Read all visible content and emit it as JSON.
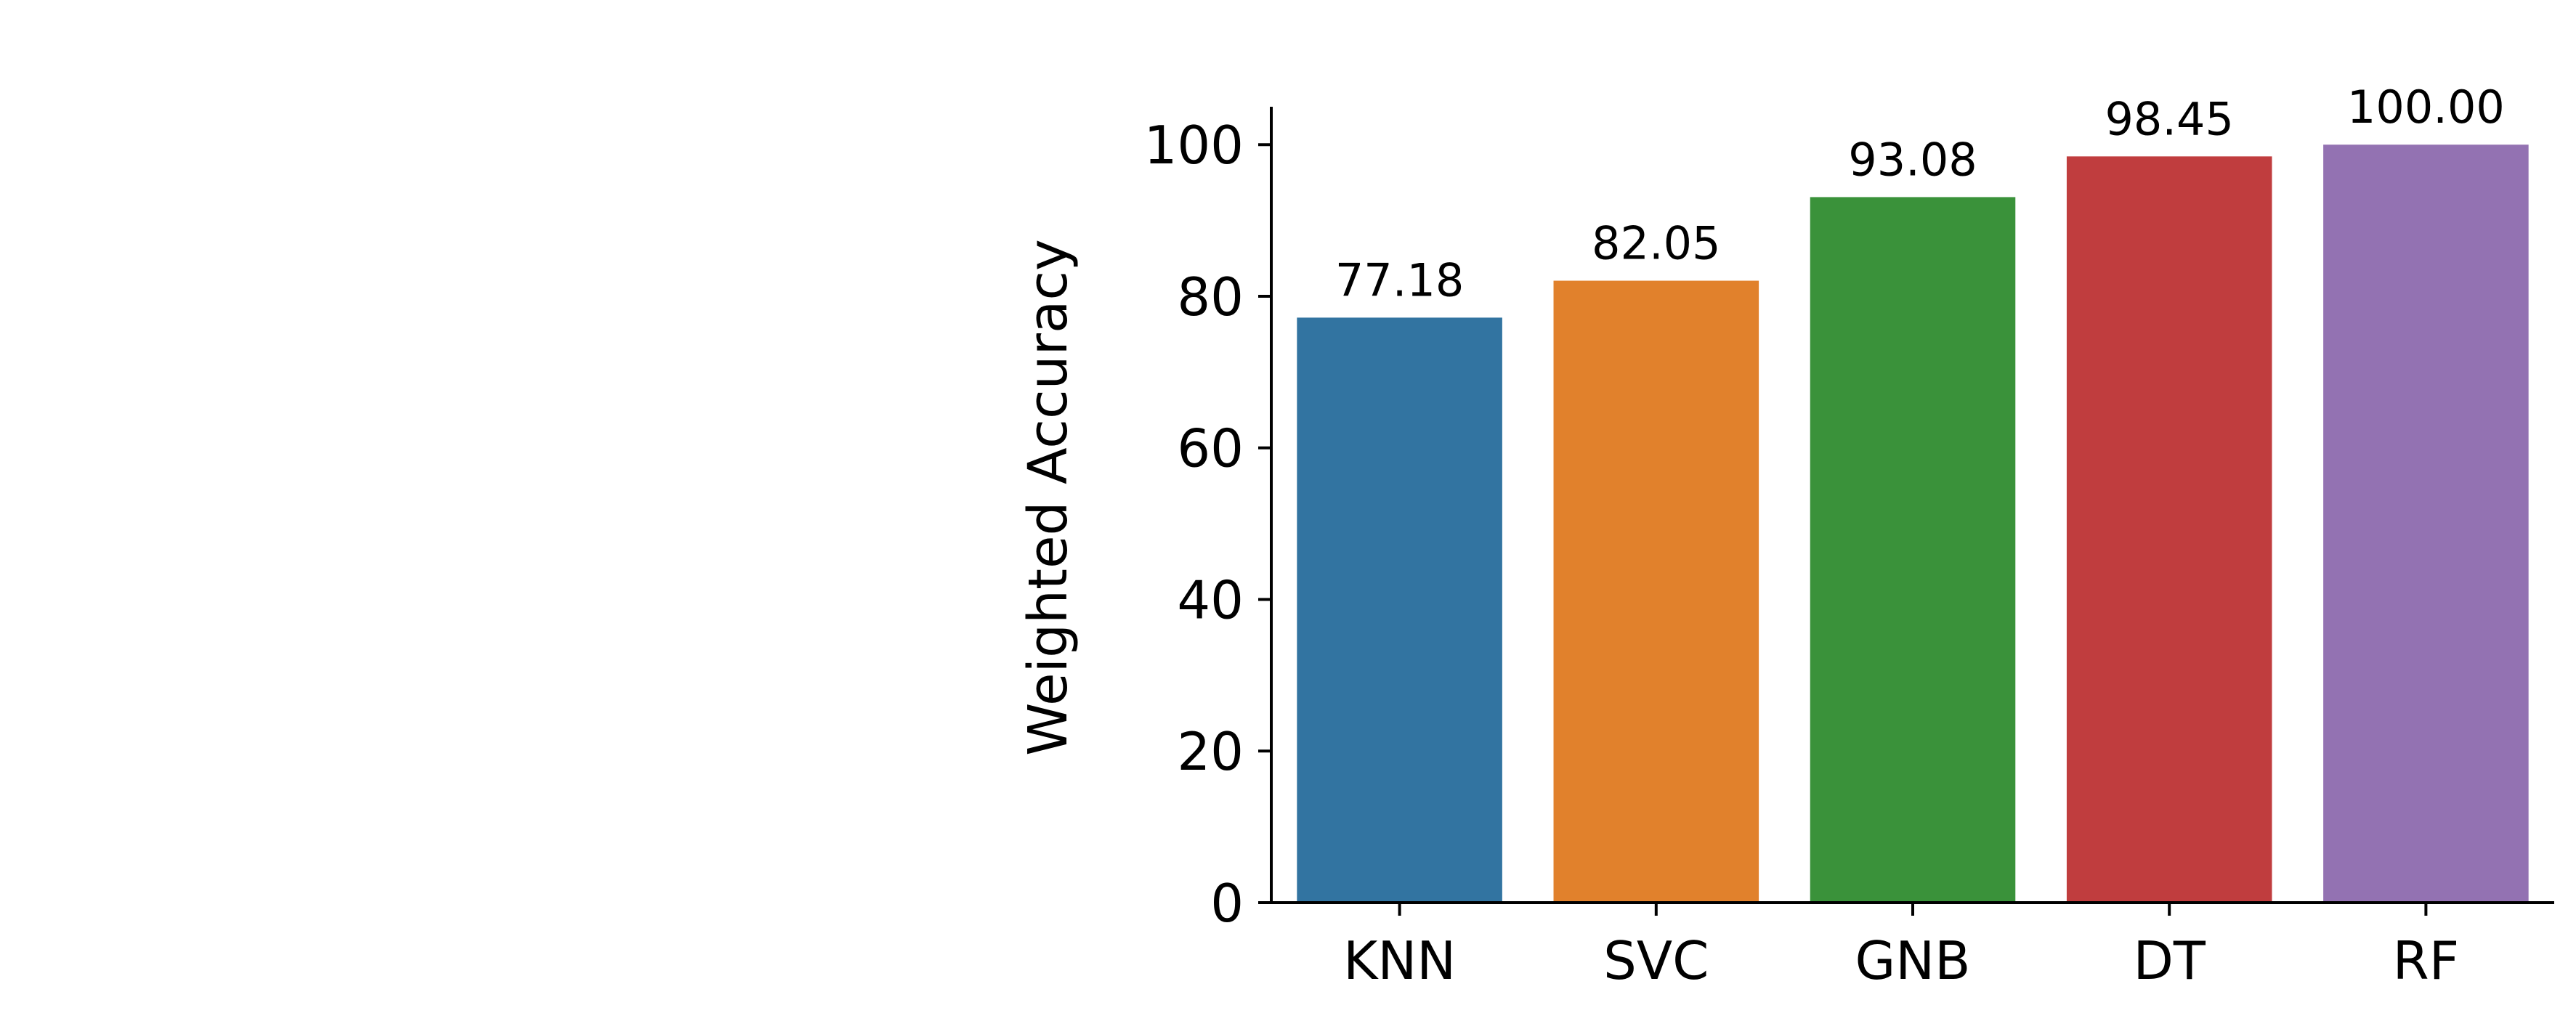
{
  "chart_data": {
    "type": "bar",
    "title": "",
    "xlabel": "",
    "ylabel": "Weighted Accuracy",
    "categories": [
      "KNN",
      "SVC",
      "GNB",
      "DT",
      "RF"
    ],
    "values": [
      77.18,
      82.05,
      93.08,
      98.45,
      100.0
    ],
    "value_labels": [
      "77.18",
      "82.05",
      "93.08",
      "98.45",
      "100.00"
    ],
    "colors": [
      "#3274a1",
      "#e1812c",
      "#3a923a",
      "#c03d3e",
      "#9372b2"
    ],
    "ylim": [
      0,
      105
    ],
    "yticks": [
      0,
      20,
      40,
      60,
      80,
      100
    ],
    "ytick_labels": [
      "0",
      "20",
      "40",
      "60",
      "80",
      "100"
    ],
    "grid": false,
    "legend": false,
    "spines": "left-bottom"
  }
}
